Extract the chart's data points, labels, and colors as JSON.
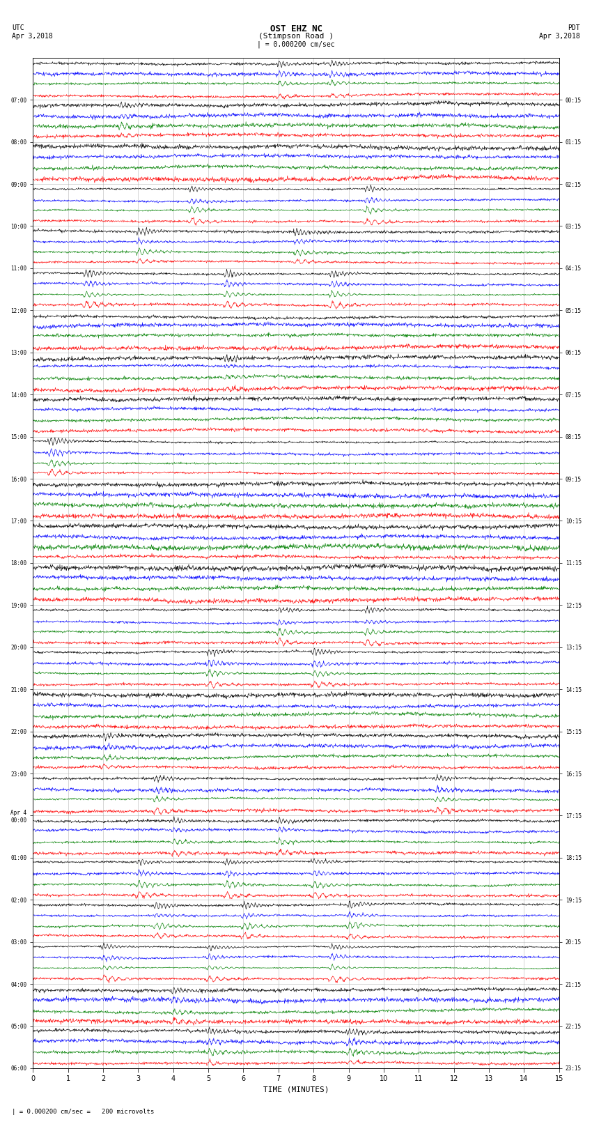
{
  "title_line1": "OST EHZ NC",
  "title_line2": "(Stimpson Road )",
  "scale_label": "| = 0.000200 cm/sec",
  "footer_label": "| = 0.000200 cm/sec =   200 microvolts",
  "utc_label": "UTC",
  "utc_date": "Apr 3,2018",
  "pdt_label": "PDT",
  "pdt_date": "Apr 3,2018",
  "xlabel": "TIME (MINUTES)",
  "left_times": [
    "07:00",
    "08:00",
    "09:00",
    "10:00",
    "11:00",
    "12:00",
    "13:00",
    "14:00",
    "15:00",
    "16:00",
    "17:00",
    "18:00",
    "19:00",
    "20:00",
    "21:00",
    "22:00",
    "23:00",
    "Apr 4\n00:00",
    "01:00",
    "02:00",
    "03:00",
    "04:00",
    "05:00",
    "06:00"
  ],
  "right_times": [
    "00:15",
    "01:15",
    "02:15",
    "03:15",
    "04:15",
    "05:15",
    "06:15",
    "07:15",
    "08:15",
    "09:15",
    "10:15",
    "11:15",
    "12:15",
    "13:15",
    "14:15",
    "15:15",
    "16:15",
    "17:15",
    "18:15",
    "19:15",
    "20:15",
    "21:15",
    "22:15",
    "23:15"
  ],
  "num_rows": 24,
  "traces_per_row": 4,
  "time_minutes": 15,
  "colors": [
    "red",
    "green",
    "blue",
    "black"
  ],
  "bg_color": "#ffffff",
  "grid_color": "#999999",
  "row_events": {
    "0": {
      "times": [
        7.0,
        8.5
      ],
      "amp": 2.5
    },
    "1": {
      "times": [
        2.5
      ],
      "amp": 1.8
    },
    "3": {
      "times": [
        4.5,
        9.5
      ],
      "amp": 4.0
    },
    "4": {
      "times": [
        3.0,
        7.5
      ],
      "amp": 3.5
    },
    "5": {
      "times": [
        1.5,
        5.5,
        8.5
      ],
      "amp": 4.5
    },
    "7": {
      "times": [
        5.5
      ],
      "amp": 1.5
    },
    "9": {
      "times": [
        0.5
      ],
      "amp": 5.0
    },
    "13": {
      "times": [
        7.0,
        9.5
      ],
      "amp": 3.5
    },
    "14": {
      "times": [
        5.0,
        8.0
      ],
      "amp": 4.0
    },
    "16": {
      "times": [
        2.0
      ],
      "amp": 2.0
    },
    "17": {
      "times": [
        3.5,
        11.5
      ],
      "amp": 3.0
    },
    "18": {
      "times": [
        4.0,
        7.0
      ],
      "amp": 2.5
    },
    "19": {
      "times": [
        3.0,
        5.5,
        8.0
      ],
      "amp": 3.5
    },
    "20": {
      "times": [
        3.5,
        6.0,
        9.0
      ],
      "amp": 3.5
    },
    "21": {
      "times": [
        2.0,
        5.0,
        8.5
      ],
      "amp": 4.5
    },
    "22": {
      "times": [
        4.0
      ],
      "amp": 2.0
    },
    "23": {
      "times": [
        5.0,
        9.0
      ],
      "amp": 2.5
    }
  }
}
